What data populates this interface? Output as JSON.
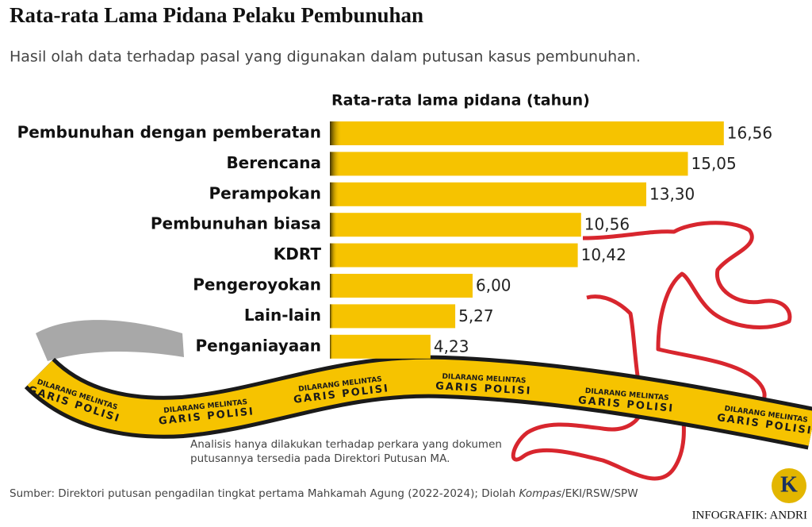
{
  "chart_data": {
    "type": "bar",
    "title": "Rata-rata Lama Pidana Pelaku Pembunuhan",
    "subtitle": "Hasil olah data terhadap pasal yang digunakan dalam putusan kasus pembunuhan.",
    "value_axis_label": "Rata-rata lama pidana (tahun)",
    "categories": [
      "Pembunuhan dengan pemberatan",
      "Berencana",
      "Perampokan",
      "Pembunuhan biasa",
      "KDRT",
      "Pengeroyokan",
      "Lain-lain",
      "Penganiayaan"
    ],
    "values": [
      16.56,
      15.05,
      13.3,
      10.56,
      10.42,
      6.0,
      5.27,
      4.23
    ],
    "value_labels": [
      "16,56",
      "15,05",
      "13,30",
      "10,56",
      "10,42",
      "6,00",
      "5,27",
      "4,23"
    ],
    "color": "#f6c300",
    "note": [
      "Analisis hanya dilakukan terhadap perkara yang dokumen",
      "putusannya tersedia pada Direktori Putusan MA."
    ],
    "source_parts": [
      "Sumber: Direktori putusan pengadilan tingkat pertama Mahkamah Agung (2022-2024); Diolah ",
      "Kompas",
      "/EKI/RSW/SPW"
    ],
    "credit": "INFOGRAFIK: ANDRI",
    "logo": "K",
    "tape_text": [
      "DILARANG MELINTAS",
      "GARIS POLISI"
    ]
  }
}
